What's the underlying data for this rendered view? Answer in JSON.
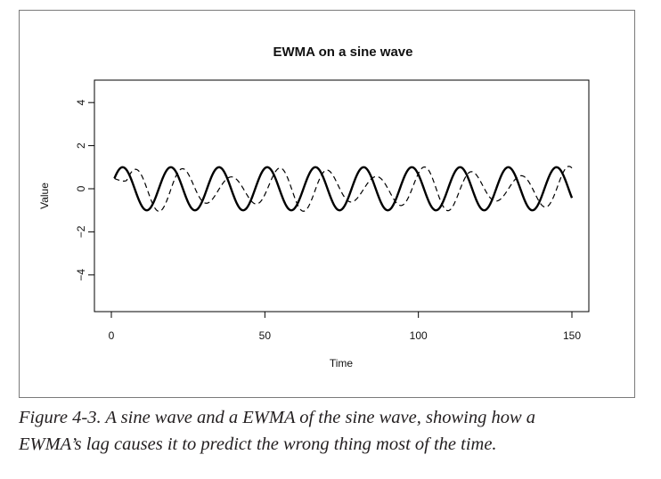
{
  "chart_data": {
    "type": "line",
    "title": "EWMA on a sine wave",
    "xlabel": "Time",
    "ylabel": "Value",
    "xlim": [
      0,
      150
    ],
    "ylim": [
      -5,
      5
    ],
    "x_ticks": [
      0,
      50,
      100,
      150
    ],
    "y_ticks": [
      -4,
      -2,
      0,
      2,
      4
    ],
    "grid": false,
    "legend": "none",
    "x": [
      1,
      150
    ],
    "series": [
      {
        "role": "sine wave",
        "style": "solid",
        "color": "#000000",
        "amplitude": 1.0,
        "period": 15.7,
        "values_at_x": [
          0.48,
          -0.26
        ]
      },
      {
        "role": "EWMA of the sine wave",
        "style": "dashed",
        "color": "#000000",
        "amplitude_range": [
          0.55,
          1.05
        ],
        "period": 15.7,
        "values_at_x": [
          0.48,
          0.47
        ]
      }
    ]
  },
  "caption": {
    "lines": [
      "Figure 4-3. A sine wave and a EWMA of the sine wave, showing how a",
      "EWMA’s lag causes it to predict the wrong thing most of the time."
    ]
  }
}
